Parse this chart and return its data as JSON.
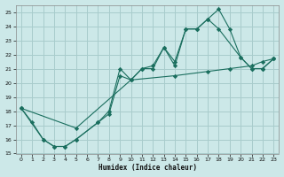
{
  "xlabel": "Humidex (Indice chaleur)",
  "xlim": [
    -0.5,
    23.5
  ],
  "ylim": [
    15,
    25.5
  ],
  "yticks": [
    15,
    16,
    17,
    18,
    19,
    20,
    21,
    22,
    23,
    24,
    25
  ],
  "xticks": [
    0,
    1,
    2,
    3,
    4,
    5,
    6,
    7,
    8,
    9,
    10,
    11,
    12,
    13,
    14,
    15,
    16,
    17,
    18,
    19,
    20,
    21,
    22,
    23
  ],
  "bg_color": "#cce8e8",
  "grid_color": "#a8cccc",
  "line_color": "#1a6e5e",
  "line1": {
    "x": [
      0,
      1,
      2,
      3,
      4,
      5,
      7,
      8,
      9,
      10,
      11,
      12,
      13,
      14,
      15,
      16,
      17,
      18,
      19,
      20,
      21,
      22,
      23
    ],
    "y": [
      18.2,
      17.2,
      16.0,
      15.5,
      15.5,
      16.0,
      17.2,
      18.0,
      21.0,
      20.2,
      21.0,
      21.2,
      22.5,
      21.5,
      23.8,
      23.8,
      24.5,
      25.2,
      23.8,
      21.8,
      21.0,
      21.0,
      21.7
    ]
  },
  "line2": {
    "x": [
      0,
      2,
      3,
      4,
      5,
      7,
      8,
      9,
      10,
      11,
      12,
      13,
      14,
      15,
      16,
      17,
      18,
      20,
      21,
      22,
      23
    ],
    "y": [
      18.2,
      16.0,
      15.5,
      15.5,
      16.0,
      17.2,
      17.8,
      20.5,
      20.2,
      21.0,
      21.0,
      22.5,
      21.2,
      23.8,
      23.8,
      24.5,
      23.8,
      21.8,
      21.0,
      21.0,
      21.7
    ]
  },
  "line3": {
    "x": [
      0,
      5,
      10,
      14,
      17,
      19,
      21,
      22,
      23
    ],
    "y": [
      18.2,
      16.8,
      20.2,
      20.5,
      20.8,
      21.0,
      21.2,
      21.5,
      21.7
    ]
  }
}
